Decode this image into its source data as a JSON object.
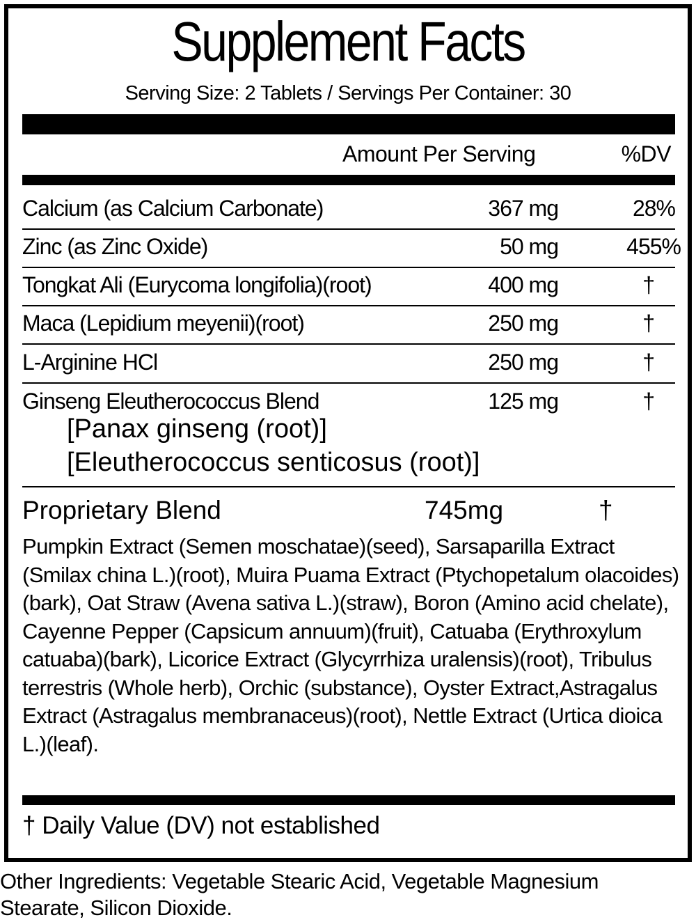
{
  "title": "Supplement Facts",
  "serving": "Serving Size: 2 Tablets  /  Servings Per Container: 30",
  "header": {
    "amount": "Amount Per Serving",
    "dv": "%DV"
  },
  "rows": [
    {
      "name": "Calcium (as Calcium Carbonate)",
      "amount": "367 mg",
      "dv": "28%"
    },
    {
      "name": "Zinc (as Zinc Oxide)",
      "amount": "50 mg",
      "dv": "455%"
    },
    {
      "name": "Tongkat Ali (Eurycoma longifolia)(root)",
      "amount": "400 mg",
      "dv": "†"
    },
    {
      "name": "Maca (Lepidium meyenii)(root)",
      "amount": "250 mg",
      "dv": "†"
    },
    {
      "name": "L-Arginine HCl",
      "amount": "250 mg",
      "dv": "†"
    },
    {
      "name": "Ginseng Eleutherococcus Blend",
      "amount": "125 mg",
      "dv": "†",
      "sub": [
        "[Panax ginseng (root)]",
        "[Eleutherococcus senticosus (root)]"
      ]
    }
  ],
  "blend": {
    "name": "Proprietary Blend",
    "amount": "745mg",
    "dv": "†",
    "ingredients": "Pumpkin Extract (Semen moschatae)(seed), Sarsaparilla Extract (Smilax china L.)(root), Muira Puama Extract (Ptychopetalum olacoides)(bark), Oat Straw (Avena sativa L.)(straw), Boron (Amino acid chelate), Cayenne Pepper (Capsicum annuum)(fruit), Catuaba (Erythroxylum catuaba)(bark), Licorice Extract (Glycyrrhiza uralensis)(root), Tribulus terrestris (Whole herb), Orchic (substance), Oyster Extract,Astragalus Extract (Astragalus membranaceus)(root), Nettle Extract (Urtica dioica L.)(leaf)."
  },
  "footnote": "† Daily Value (DV) not established",
  "other": "Other Ingredients: Vegetable Stearic Acid, Vegetable Magnesium Stearate, Silicon Dioxide."
}
